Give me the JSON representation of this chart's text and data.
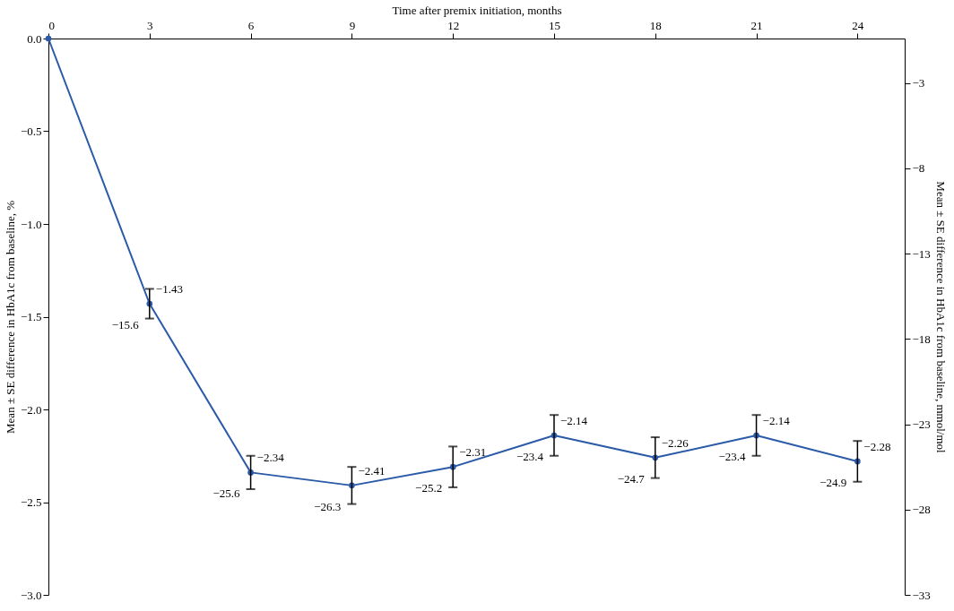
{
  "chart_data": {
    "type": "line",
    "xlabel": "Time after premix initiation, months",
    "ylabel": "Mean ± SE difference in HbA1c from baseline, %",
    "y2label": "Mean ± SE difference in HbA1c from baseline, mmol/mol",
    "x": [
      0,
      3,
      6,
      9,
      12,
      15,
      18,
      21,
      24
    ],
    "series": [
      {
        "color": "#2a5aa8",
        "values": [
          0.0,
          -1.43,
          -2.34,
          -2.41,
          -2.31,
          -2.14,
          -2.26,
          -2.14,
          -2.28
        ],
        "errors": [
          null,
          0.08,
          0.09,
          0.1,
          0.11,
          0.11,
          0.11,
          0.11,
          0.11
        ],
        "value_labels": [
          null,
          "−1.43",
          "−2.34",
          "−2.41",
          "−2.31",
          "−2.14",
          "−2.26",
          "−2.14",
          "−2.28"
        ]
      }
    ],
    "xlim": [
      0,
      25.4
    ],
    "xticks": [
      0,
      3,
      6,
      9,
      12,
      15,
      18,
      21,
      24
    ],
    "ylim": [
      -3.0,
      0
    ],
    "yticks": [
      {
        "value": 0,
        "label": "0.0"
      },
      {
        "value": -0.5,
        "label": "−0.5"
      },
      {
        "value": -1.0,
        "label": "−1.0"
      },
      {
        "value": -1.5,
        "label": "−1.5"
      },
      {
        "value": -2.0,
        "label": "−2.0"
      },
      {
        "value": -2.5,
        "label": "−2.5"
      },
      {
        "value": -3.0,
        "label": "−3.0"
      }
    ],
    "y2lim": [
      -33,
      -0.4
    ],
    "y2ticks": [
      {
        "value": -3,
        "label": "−3"
      },
      {
        "value": -8,
        "label": "−8"
      },
      {
        "value": -13,
        "label": "−13"
      },
      {
        "value": -18,
        "label": "−18"
      },
      {
        "value": -23,
        "label": "−23"
      },
      {
        "value": -28,
        "label": "−28"
      },
      {
        "value": -33,
        "label": "−33"
      }
    ],
    "annotations": [
      {
        "text": "−15.6",
        "x": 3,
        "y": -1.43
      },
      {
        "text": "−25.6",
        "x": 6,
        "y": -2.34
      },
      {
        "text": "−26.3",
        "x": 9,
        "y": -2.41
      },
      {
        "text": "−25.2",
        "x": 12,
        "y": -2.31
      },
      {
        "text": "−23.4",
        "x": 15,
        "y": -2.14
      },
      {
        "text": "−24.7",
        "x": 18,
        "y": -2.26
      },
      {
        "text": "−23.4",
        "x": 21,
        "y": -2.14
      },
      {
        "text": "−24.9",
        "x": 24,
        "y": -2.28
      }
    ],
    "grid": false,
    "marker": "circle",
    "line_style": "solid"
  }
}
